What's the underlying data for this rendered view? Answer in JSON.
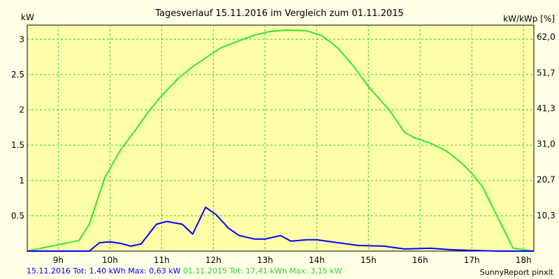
{
  "chart_data": {
    "type": "line",
    "title": "Tagesverlauf 15.11.2016 im Vergleich zum 01.11.2015",
    "ylabel_left": "kW",
    "ylabel_right": "kW/kWp [%]",
    "xlim": [
      8.4,
      18.2
    ],
    "ylim": [
      0,
      3.2
    ],
    "x_ticks": [
      {
        "value": 9,
        "label": "9h"
      },
      {
        "value": 10,
        "label": "10h"
      },
      {
        "value": 11,
        "label": "11h"
      },
      {
        "value": 12,
        "label": "12h"
      },
      {
        "value": 13,
        "label": "13h"
      },
      {
        "value": 14,
        "label": "14h"
      },
      {
        "value": 15,
        "label": "15h"
      },
      {
        "value": 16,
        "label": "16h"
      },
      {
        "value": 17,
        "label": "17h"
      },
      {
        "value": 18,
        "label": "18h"
      }
    ],
    "y_ticks_left": [
      {
        "value": 0.5,
        "label": "0.5"
      },
      {
        "value": 1,
        "label": "1"
      },
      {
        "value": 1.5,
        "label": "1.5"
      },
      {
        "value": 2,
        "label": "2"
      },
      {
        "value": 2.5,
        "label": "2.5"
      },
      {
        "value": 3,
        "label": "3"
      }
    ],
    "y_ticks_right": [
      {
        "value": 0.505,
        "label": "10,3"
      },
      {
        "value": 1.01,
        "label": "20,7"
      },
      {
        "value": 1.515,
        "label": "31,0"
      },
      {
        "value": 2.02,
        "label": "41,3"
      },
      {
        "value": 2.525,
        "label": "51,7"
      },
      {
        "value": 3.03,
        "label": "62,0"
      }
    ],
    "grid": true,
    "series": [
      {
        "name": "15.11.2016",
        "color": "#0000ff",
        "points": [
          [
            8.4,
            0
          ],
          [
            9.6,
            0.0
          ],
          [
            9.8,
            0.12
          ],
          [
            10.0,
            0.13
          ],
          [
            10.2,
            0.11
          ],
          [
            10.4,
            0.07
          ],
          [
            10.6,
            0.1
          ],
          [
            10.9,
            0.38
          ],
          [
            11.1,
            0.42
          ],
          [
            11.4,
            0.38
          ],
          [
            11.6,
            0.24
          ],
          [
            11.85,
            0.62
          ],
          [
            12.05,
            0.52
          ],
          [
            12.3,
            0.32
          ],
          [
            12.5,
            0.22
          ],
          [
            12.8,
            0.17
          ],
          [
            13.0,
            0.17
          ],
          [
            13.3,
            0.22
          ],
          [
            13.5,
            0.14
          ],
          [
            13.8,
            0.16
          ],
          [
            14.0,
            0.16
          ],
          [
            14.5,
            0.11
          ],
          [
            14.8,
            0.08
          ],
          [
            15.3,
            0.07
          ],
          [
            15.7,
            0.03
          ],
          [
            16.2,
            0.04
          ],
          [
            16.6,
            0.02
          ],
          [
            17.0,
            0.01
          ],
          [
            17.5,
            0.0
          ],
          [
            18.2,
            0
          ]
        ]
      },
      {
        "name": "01.11.2015",
        "color": "#2ee82e",
        "points": [
          [
            8.4,
            0
          ],
          [
            9.4,
            0.15
          ],
          [
            9.6,
            0.38
          ],
          [
            9.9,
            1.04
          ],
          [
            10.2,
            1.43
          ],
          [
            10.5,
            1.72
          ],
          [
            10.75,
            1.98
          ],
          [
            11.0,
            2.2
          ],
          [
            11.3,
            2.43
          ],
          [
            11.6,
            2.61
          ],
          [
            11.9,
            2.76
          ],
          [
            12.15,
            2.88
          ],
          [
            12.5,
            2.98
          ],
          [
            12.8,
            3.06
          ],
          [
            13.1,
            3.11
          ],
          [
            13.4,
            3.13
          ],
          [
            13.8,
            3.12
          ],
          [
            14.1,
            3.05
          ],
          [
            14.4,
            2.88
          ],
          [
            14.7,
            2.63
          ],
          [
            15.0,
            2.33
          ],
          [
            15.4,
            2.0
          ],
          [
            15.7,
            1.68
          ],
          [
            15.9,
            1.6
          ],
          [
            16.2,
            1.53
          ],
          [
            16.5,
            1.42
          ],
          [
            16.8,
            1.25
          ],
          [
            17.0,
            1.1
          ],
          [
            17.2,
            0.92
          ],
          [
            17.5,
            0.48
          ],
          [
            17.8,
            0.04
          ],
          [
            18.2,
            0.0
          ]
        ]
      }
    ],
    "summary": {
      "series1": "15.11.2016 Tot: 1,40 kWh Max: 0,63 kW",
      "series2": "01.11.2015 Tot: 17,41 kWh Max: 3,15 kW"
    },
    "credit": "SunnyReport pinxit"
  }
}
